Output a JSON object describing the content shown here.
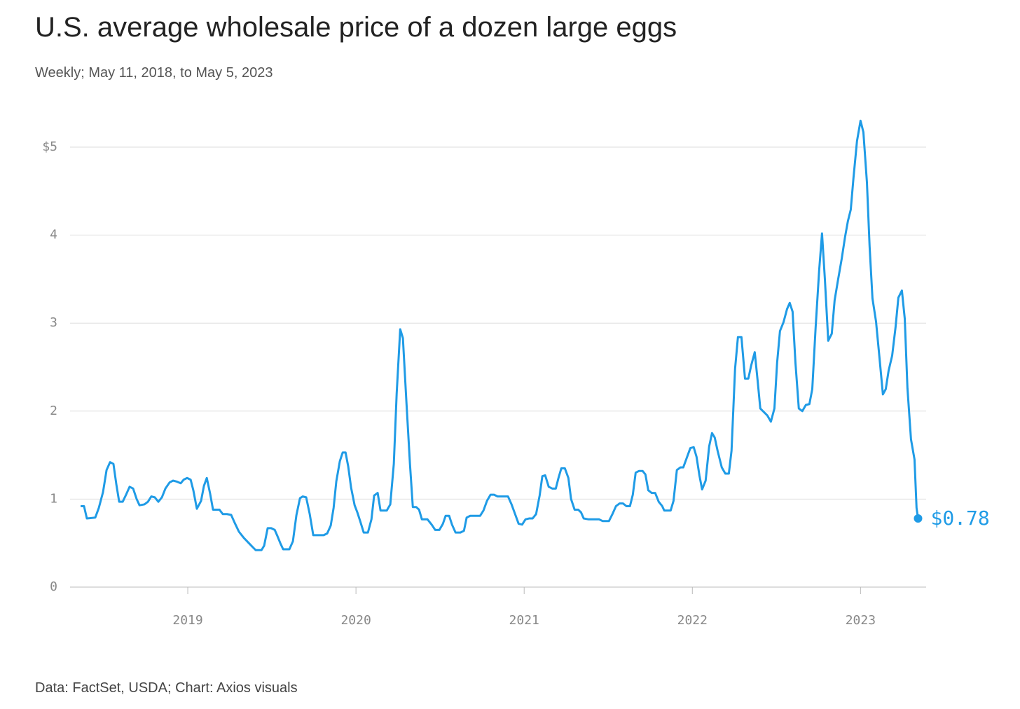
{
  "chart_data": {
    "type": "line",
    "title": "U.S. average wholesale price of a dozen large eggs",
    "subtitle": "Weekly; May 11, 2018, to May 5, 2023",
    "source": "Data: FactSet, USDA; Chart: Axios visuals",
    "xlim": [
      2018.3,
      2023.39
    ],
    "xticks": [
      2019,
      2020,
      2021,
      2022,
      2023
    ],
    "ylim": [
      0,
      5.5
    ],
    "yticks": [
      0,
      1,
      2,
      3,
      4,
      {
        "value": 5,
        "label": "$5"
      }
    ],
    "grid": true,
    "x": [
      2018.363,
      2018.383,
      2018.4,
      2018.45,
      2018.471,
      2018.496,
      2018.517,
      2018.538,
      2018.558,
      2018.575,
      2018.592,
      2018.613,
      2018.633,
      2018.654,
      2018.675,
      2018.696,
      2018.713,
      2018.742,
      2018.763,
      2018.783,
      2018.804,
      2018.825,
      2018.846,
      2018.867,
      2018.892,
      2018.913,
      2018.933,
      2018.958,
      2018.975,
      2018.996,
      2019.017,
      2019.033,
      2019.054,
      2019.079,
      2019.096,
      2019.113,
      2019.133,
      2019.15,
      2019.188,
      2019.208,
      2019.233,
      2019.258,
      2019.279,
      2019.304,
      2019.333,
      2019.363,
      2019.383,
      2019.404,
      2019.438,
      2019.454,
      2019.475,
      2019.496,
      2019.517,
      2019.533,
      2019.55,
      2019.567,
      2019.604,
      2019.625,
      2019.646,
      2019.667,
      2019.683,
      2019.704,
      2019.725,
      2019.746,
      2019.808,
      2019.829,
      2019.85,
      2019.867,
      2019.883,
      2019.904,
      2019.921,
      2019.938,
      2019.954,
      2019.971,
      2019.992,
      2020.008,
      2020.025,
      2020.046,
      2020.071,
      2020.092,
      2020.108,
      2020.129,
      2020.146,
      2020.183,
      2020.204,
      2020.225,
      2020.242,
      2020.263,
      2020.279,
      2020.3,
      2020.321,
      2020.338,
      2020.358,
      2020.375,
      2020.392,
      2020.425,
      2020.45,
      2020.471,
      2020.496,
      2020.517,
      2020.533,
      2020.554,
      2020.571,
      2020.592,
      2020.621,
      2020.642,
      2020.658,
      2020.679,
      2020.738,
      2020.758,
      2020.779,
      2020.8,
      2020.821,
      2020.842,
      2020.904,
      2020.925,
      2020.946,
      2020.967,
      2020.988,
      2021.008,
      2021.029,
      2021.05,
      2021.071,
      2021.092,
      2021.108,
      2021.125,
      2021.146,
      2021.167,
      2021.188,
      2021.204,
      2021.221,
      2021.242,
      2021.263,
      2021.279,
      2021.3,
      2021.321,
      2021.338,
      2021.354,
      2021.383,
      2021.446,
      2021.467,
      2021.504,
      2021.525,
      2021.546,
      2021.567,
      2021.588,
      2021.608,
      2021.629,
      2021.646,
      2021.663,
      2021.683,
      2021.704,
      2021.721,
      2021.738,
      2021.758,
      2021.779,
      2021.8,
      2021.821,
      2021.833,
      2021.871,
      2021.888,
      2021.908,
      2021.929,
      2021.946,
      2021.967,
      2021.988,
      2022.008,
      2022.025,
      2022.042,
      2022.058,
      2022.079,
      2022.1,
      2022.117,
      2022.133,
      2022.15,
      2022.175,
      2022.196,
      2022.217,
      2022.233,
      2022.254,
      2022.271,
      2022.292,
      2022.313,
      2022.333,
      2022.35,
      2022.371,
      2022.388,
      2022.404,
      2022.425,
      2022.446,
      2022.467,
      2022.488,
      2022.504,
      2022.521,
      2022.542,
      2022.563,
      2022.579,
      2022.596,
      2022.613,
      2022.633,
      2022.654,
      2022.675,
      2022.696,
      2022.713,
      2022.733,
      2022.754,
      2022.771,
      2022.788,
      2022.808,
      2022.829,
      2022.846,
      2022.867,
      2022.888,
      2022.908,
      2022.925,
      2022.942,
      2022.958,
      2022.979,
      2023.0,
      2023.017,
      2023.038,
      2023.054,
      2023.071,
      2023.092,
      2023.113,
      2023.133,
      2023.15,
      2023.167,
      2023.188,
      2023.208,
      2023.225,
      2023.246,
      2023.263,
      2023.279,
      2023.3,
      2023.321,
      2023.333,
      2023.342
    ],
    "series": [
      {
        "color": "#1f9be6",
        "values": [
          0.92,
          0.92,
          0.78,
          0.79,
          0.9,
          1.08,
          1.33,
          1.42,
          1.4,
          1.17,
          0.97,
          0.97,
          1.05,
          1.14,
          1.12,
          1.0,
          0.93,
          0.94,
          0.97,
          1.03,
          1.02,
          0.97,
          1.02,
          1.12,
          1.19,
          1.21,
          1.2,
          1.18,
          1.22,
          1.24,
          1.22,
          1.1,
          0.89,
          0.98,
          1.15,
          1.24,
          1.06,
          0.88,
          0.88,
          0.83,
          0.83,
          0.82,
          0.73,
          0.63,
          0.56,
          0.5,
          0.46,
          0.42,
          0.42,
          0.47,
          0.67,
          0.67,
          0.65,
          0.58,
          0.5,
          0.43,
          0.43,
          0.52,
          0.82,
          1.01,
          1.03,
          1.02,
          0.83,
          0.59,
          0.59,
          0.61,
          0.7,
          0.9,
          1.2,
          1.43,
          1.53,
          1.53,
          1.37,
          1.13,
          0.93,
          0.85,
          0.75,
          0.62,
          0.62,
          0.77,
          1.04,
          1.07,
          0.87,
          0.87,
          0.94,
          1.4,
          2.2,
          2.93,
          2.83,
          2.1,
          1.4,
          0.91,
          0.91,
          0.88,
          0.77,
          0.77,
          0.71,
          0.65,
          0.65,
          0.72,
          0.81,
          0.81,
          0.71,
          0.62,
          0.62,
          0.64,
          0.79,
          0.81,
          0.81,
          0.87,
          0.98,
          1.05,
          1.05,
          1.03,
          1.03,
          0.94,
          0.83,
          0.72,
          0.71,
          0.77,
          0.78,
          0.78,
          0.83,
          1.04,
          1.26,
          1.27,
          1.14,
          1.12,
          1.12,
          1.24,
          1.35,
          1.35,
          1.24,
          1.0,
          0.88,
          0.88,
          0.85,
          0.78,
          0.77,
          0.77,
          0.75,
          0.75,
          0.83,
          0.92,
          0.95,
          0.95,
          0.92,
          0.92,
          1.05,
          1.3,
          1.32,
          1.32,
          1.28,
          1.1,
          1.07,
          1.07,
          0.97,
          0.92,
          0.87,
          0.87,
          0.98,
          1.33,
          1.36,
          1.36,
          1.47,
          1.58,
          1.59,
          1.48,
          1.27,
          1.11,
          1.21,
          1.6,
          1.75,
          1.7,
          1.55,
          1.36,
          1.29,
          1.29,
          1.55,
          2.48,
          2.84,
          2.84,
          2.37,
          2.37,
          2.52,
          2.67,
          2.35,
          2.03,
          1.99,
          1.95,
          1.88,
          2.03,
          2.55,
          2.91,
          3.01,
          3.16,
          3.23,
          3.13,
          2.55,
          2.03,
          2.0,
          2.07,
          2.08,
          2.25,
          2.95,
          3.6,
          4.02,
          3.5,
          2.8,
          2.88,
          3.26,
          3.5,
          3.73,
          3.98,
          4.16,
          4.29,
          4.65,
          5.07,
          5.3,
          5.17,
          4.6,
          3.87,
          3.28,
          3.02,
          2.6,
          2.19,
          2.25,
          2.46,
          2.63,
          2.95,
          3.29,
          3.37,
          3.05,
          2.26,
          1.68,
          1.45,
          0.9,
          0.78
        ],
        "value_labels": [
          null,
          null,
          null,
          null,
          null,
          null,
          null,
          null,
          null,
          null,
          null,
          null,
          null,
          null,
          null,
          null,
          null,
          null,
          null,
          null,
          null,
          null,
          null,
          null,
          null,
          null,
          null,
          null,
          null,
          null,
          null,
          null,
          null,
          null,
          null,
          null,
          null,
          null,
          null,
          null,
          null,
          null,
          null,
          null,
          null,
          null,
          null,
          null,
          null,
          null,
          null,
          null,
          null,
          null,
          null,
          null,
          null,
          null,
          null,
          null,
          null,
          null,
          null,
          null,
          null,
          null,
          null,
          null,
          null,
          null,
          null,
          null,
          null,
          null,
          null,
          null,
          null,
          null,
          null,
          null,
          null,
          null,
          null,
          null,
          null,
          null,
          null,
          null,
          null,
          null,
          null,
          null,
          null,
          null,
          null,
          null,
          null,
          null,
          null,
          null,
          null,
          null,
          null,
          null,
          null,
          null,
          null,
          null,
          null,
          null,
          null,
          null,
          null,
          null,
          null,
          null,
          null,
          null,
          null,
          null,
          null,
          null,
          null,
          null,
          null,
          null,
          null,
          null,
          null,
          null,
          null,
          null,
          null,
          null,
          null,
          null,
          null,
          null,
          null,
          null,
          null,
          null,
          null,
          null,
          null,
          null,
          null,
          null,
          null,
          null,
          null,
          null,
          null,
          null,
          null,
          null,
          null,
          null,
          null,
          null,
          null,
          null,
          null,
          null,
          null,
          null,
          null,
          null,
          null,
          null,
          null,
          null,
          null,
          null,
          null,
          null,
          null,
          null,
          null,
          null,
          null,
          null,
          null,
          null,
          null,
          null,
          null,
          null,
          null,
          null,
          null,
          null,
          null,
          null,
          null,
          null,
          null,
          null,
          null,
          null,
          null,
          null,
          null,
          null,
          null,
          null,
          null,
          null,
          null,
          null,
          null,
          null,
          null,
          null,
          null,
          null,
          null,
          null,
          null,
          null,
          null,
          null,
          null,
          null,
          null,
          null,
          null,
          null,
          null,
          null,
          null,
          null,
          null,
          null,
          null,
          null,
          null,
          "$0.78"
        ]
      }
    ]
  }
}
